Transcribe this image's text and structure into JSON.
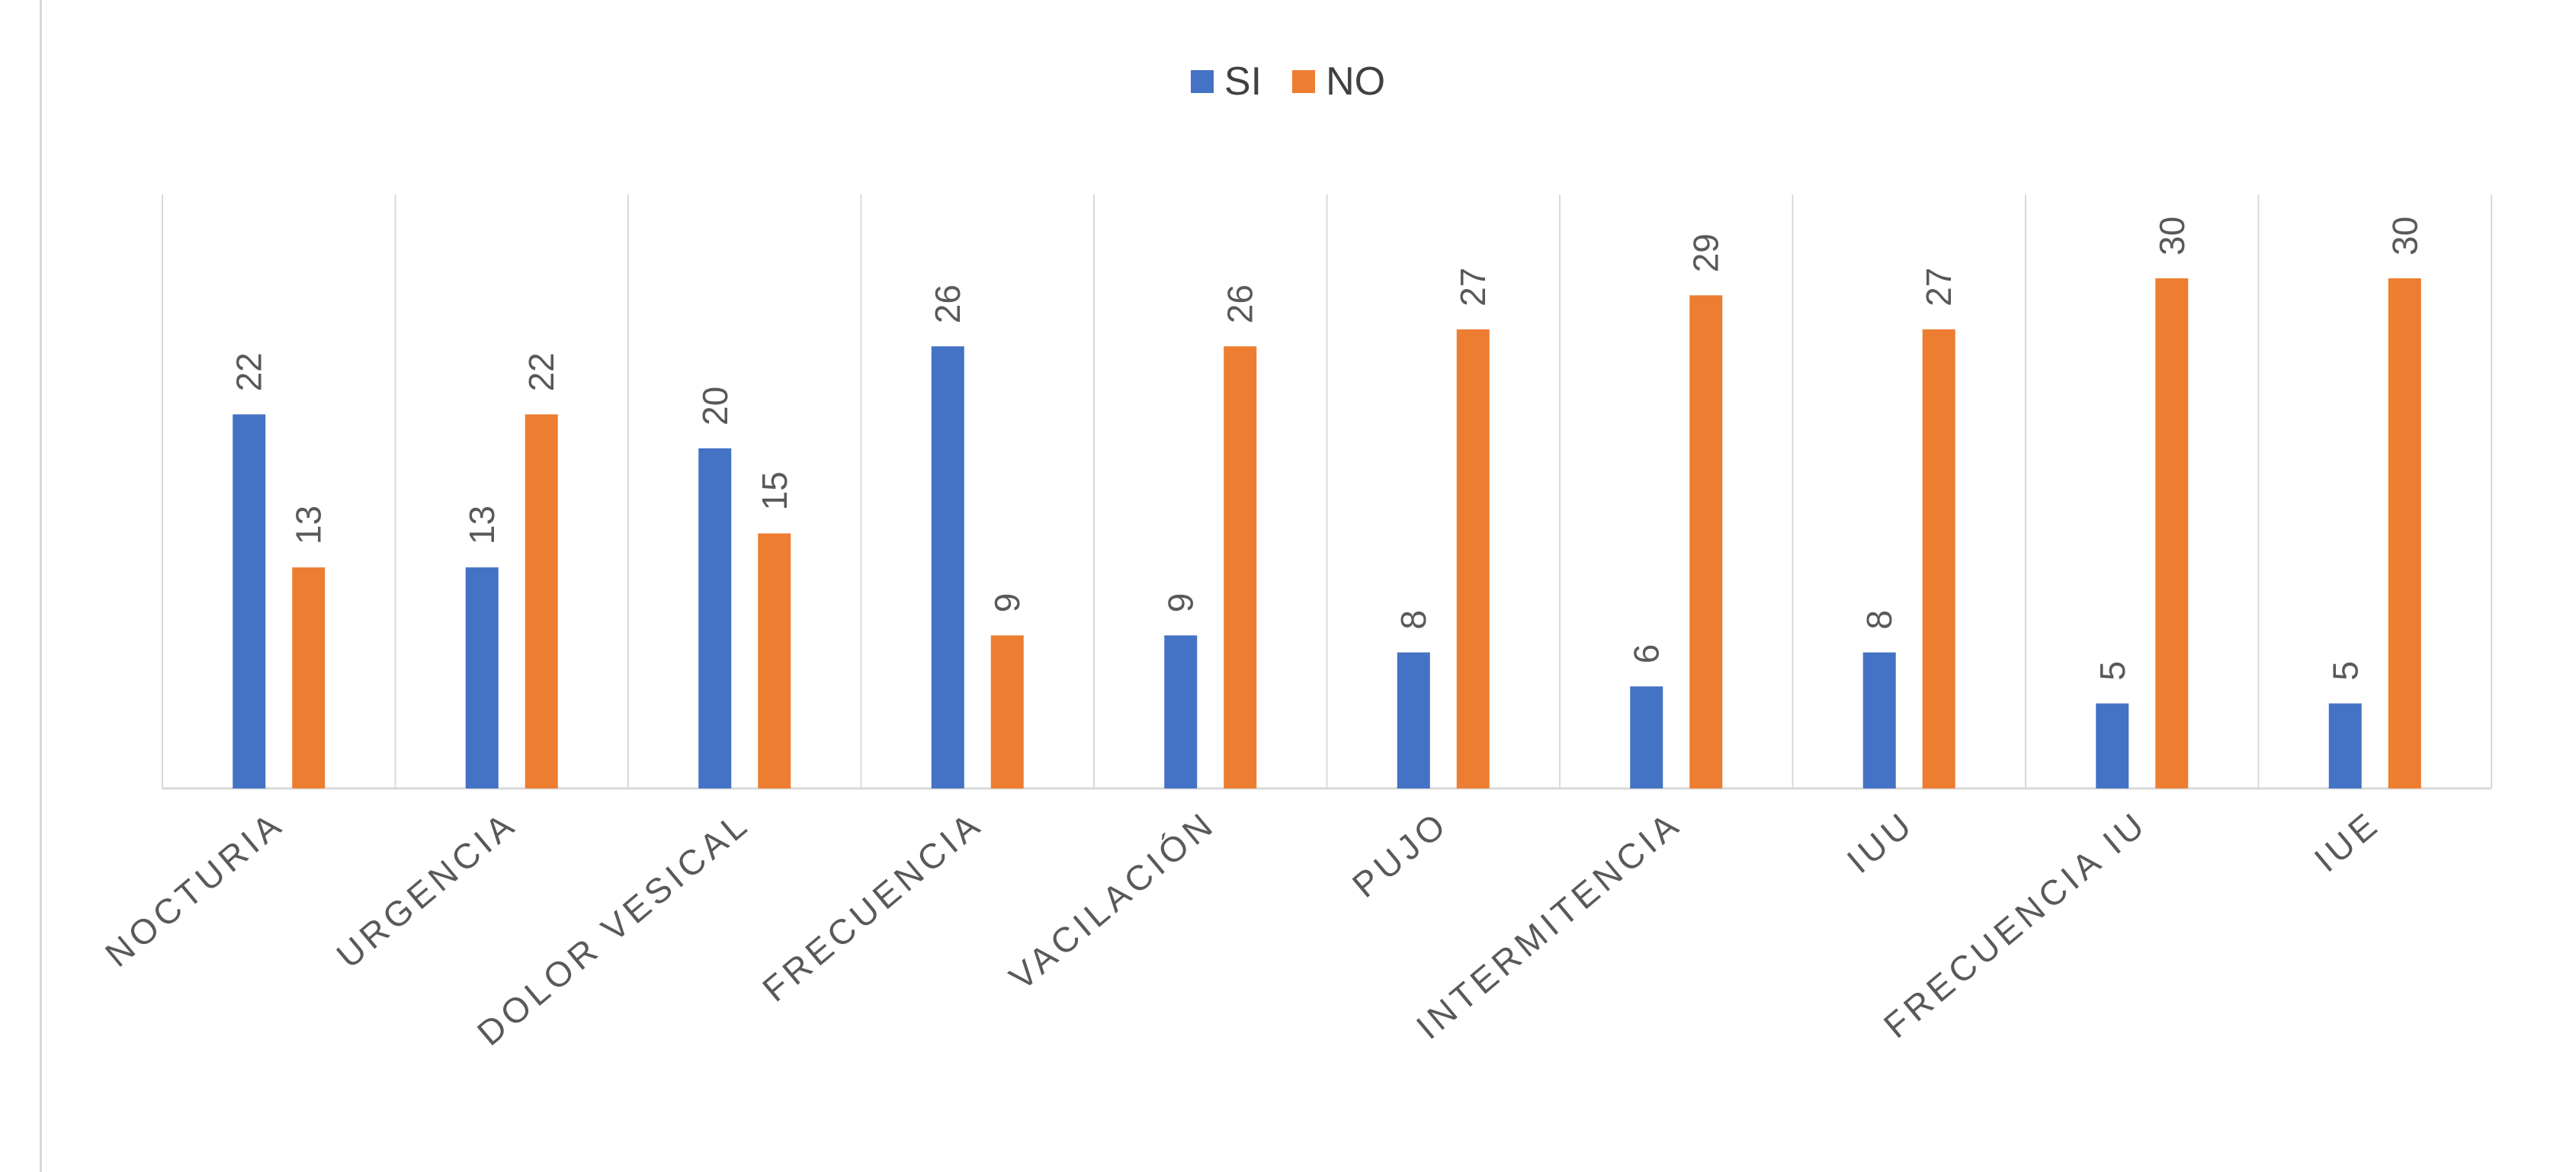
{
  "chart_data": {
    "type": "bar",
    "title": "",
    "xlabel": "",
    "ylabel": "",
    "ylim": [
      0,
      35
    ],
    "grid": "vertical category separators",
    "legend_placement": "top-center",
    "categories": [
      "NOCTURIA",
      "URGENCIA",
      "DOLOR VESICAL",
      "FRECUENCIA",
      "VACILACIÓN",
      "PUJO",
      "INTERMITENCIA",
      "IUU",
      "FRECUENCIA IU",
      "IUE"
    ],
    "series": [
      {
        "name": "SI",
        "color": "#4472C4",
        "values": [
          22,
          13,
          20,
          26,
          9,
          8,
          6,
          8,
          5,
          5
        ]
      },
      {
        "name": "NO",
        "color": "#ED7D31",
        "values": [
          13,
          22,
          15,
          9,
          26,
          27,
          29,
          27,
          30,
          30
        ]
      }
    ],
    "data_labels": true
  }
}
